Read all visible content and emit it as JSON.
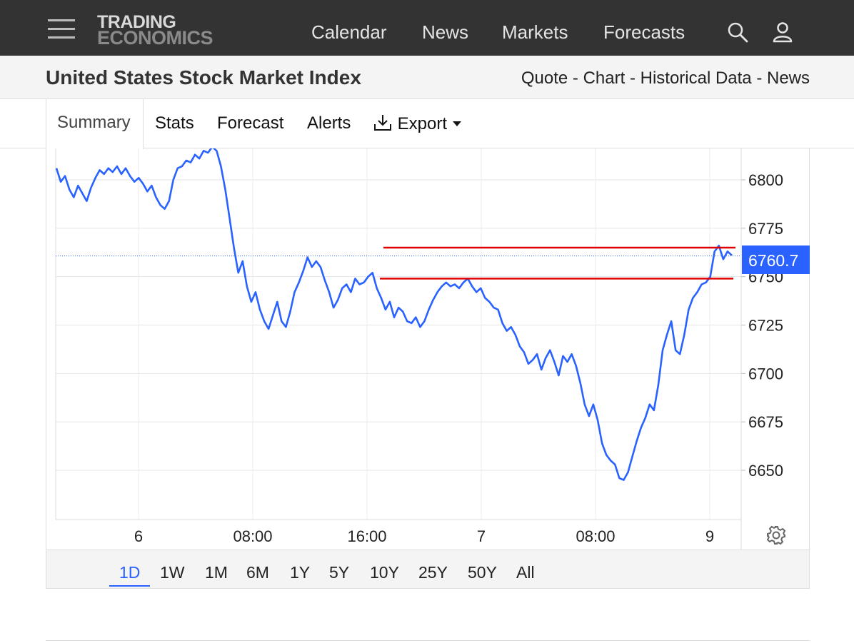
{
  "header": {
    "logo_line1": "TRADING",
    "logo_line2": "ECONOMICS",
    "nav": [
      "Calendar",
      "News",
      "Markets",
      "Forecasts"
    ],
    "menu_icon": "hamburger-menu-icon",
    "search_icon": "search-icon",
    "user_icon": "user-icon"
  },
  "title_bar": {
    "title": "United States Stock Market Index",
    "links": [
      "Quote",
      "Chart",
      "Historical Data",
      "News"
    ],
    "separator": " - "
  },
  "tabs": {
    "summary": "Summary",
    "stats": "Stats",
    "forecast": "Forecast",
    "alerts": "Alerts",
    "export": "Export"
  },
  "price_label": "6760.7",
  "ranges": [
    "1D",
    "1W",
    "1M",
    "6M",
    "1Y",
    "5Y",
    "10Y",
    "25Y",
    "50Y",
    "All"
  ],
  "selected_range": "1D",
  "colors": {
    "line": "#2962ff",
    "annotation": "#e00000",
    "price_box": "#2962ff",
    "topbar": "#333333"
  },
  "chart_data": {
    "type": "line",
    "y_ticks": [
      6650,
      6675,
      6700,
      6725,
      6750,
      6775,
      6800
    ],
    "x_ticks": [
      "6",
      "08:00",
      "16:00",
      "7",
      "08:00",
      "9"
    ],
    "ylim": [
      6630,
      6817
    ],
    "last_value": 6760.7,
    "grid": true,
    "series": [
      {
        "values": [
          6806,
          6799,
          6802,
          6795,
          6791,
          6797,
          6793,
          6789,
          6796,
          6801,
          6805,
          6803,
          6806,
          6804,
          6807,
          6803,
          6806,
          6802,
          6799,
          6801,
          6798,
          6794,
          6797,
          6791,
          6787,
          6785,
          6789,
          6800,
          6806,
          6807,
          6810,
          6809,
          6813,
          6811,
          6815,
          6814,
          6817,
          6815,
          6807,
          6795,
          6780,
          6765,
          6752,
          6758,
          6745,
          6737,
          6742,
          6733,
          6727,
          6723,
          6730,
          6737,
          6727,
          6724,
          6732,
          6742,
          6747,
          6753,
          6760,
          6755,
          6758,
          6755,
          6748,
          6742,
          6734,
          6738,
          6744,
          6746,
          6742,
          6749,
          6746,
          6747,
          6750,
          6752,
          6744,
          6739,
          6733,
          6737,
          6729,
          6734,
          6732,
          6727,
          6726,
          6729,
          6724,
          6727,
          6733,
          6738,
          6742,
          6745,
          6747,
          6745,
          6746,
          6744,
          6747,
          6749,
          6745,
          6742,
          6744,
          6739,
          6737,
          6734,
          6733,
          6726,
          6722,
          6724,
          6720,
          6714,
          6711,
          6705,
          6707,
          6710,
          6702,
          6708,
          6712,
          6706,
          6699,
          6709,
          6706,
          6710,
          6704,
          6695,
          6684,
          6678,
          6684,
          6676,
          6664,
          6658,
          6655,
          6653,
          6646,
          6645,
          6649,
          6657,
          6665,
          6672,
          6677,
          6684,
          6681,
          6694,
          6712,
          6720,
          6727,
          6712,
          6710,
          6720,
          6733,
          6739,
          6742,
          6746,
          6747,
          6750,
          6763,
          6766,
          6759,
          6763,
          6761
        ]
      }
    ],
    "annotations": [
      {
        "type": "hline",
        "y": 6765,
        "color": "red"
      },
      {
        "type": "hline",
        "y": 6749,
        "color": "red"
      }
    ]
  }
}
